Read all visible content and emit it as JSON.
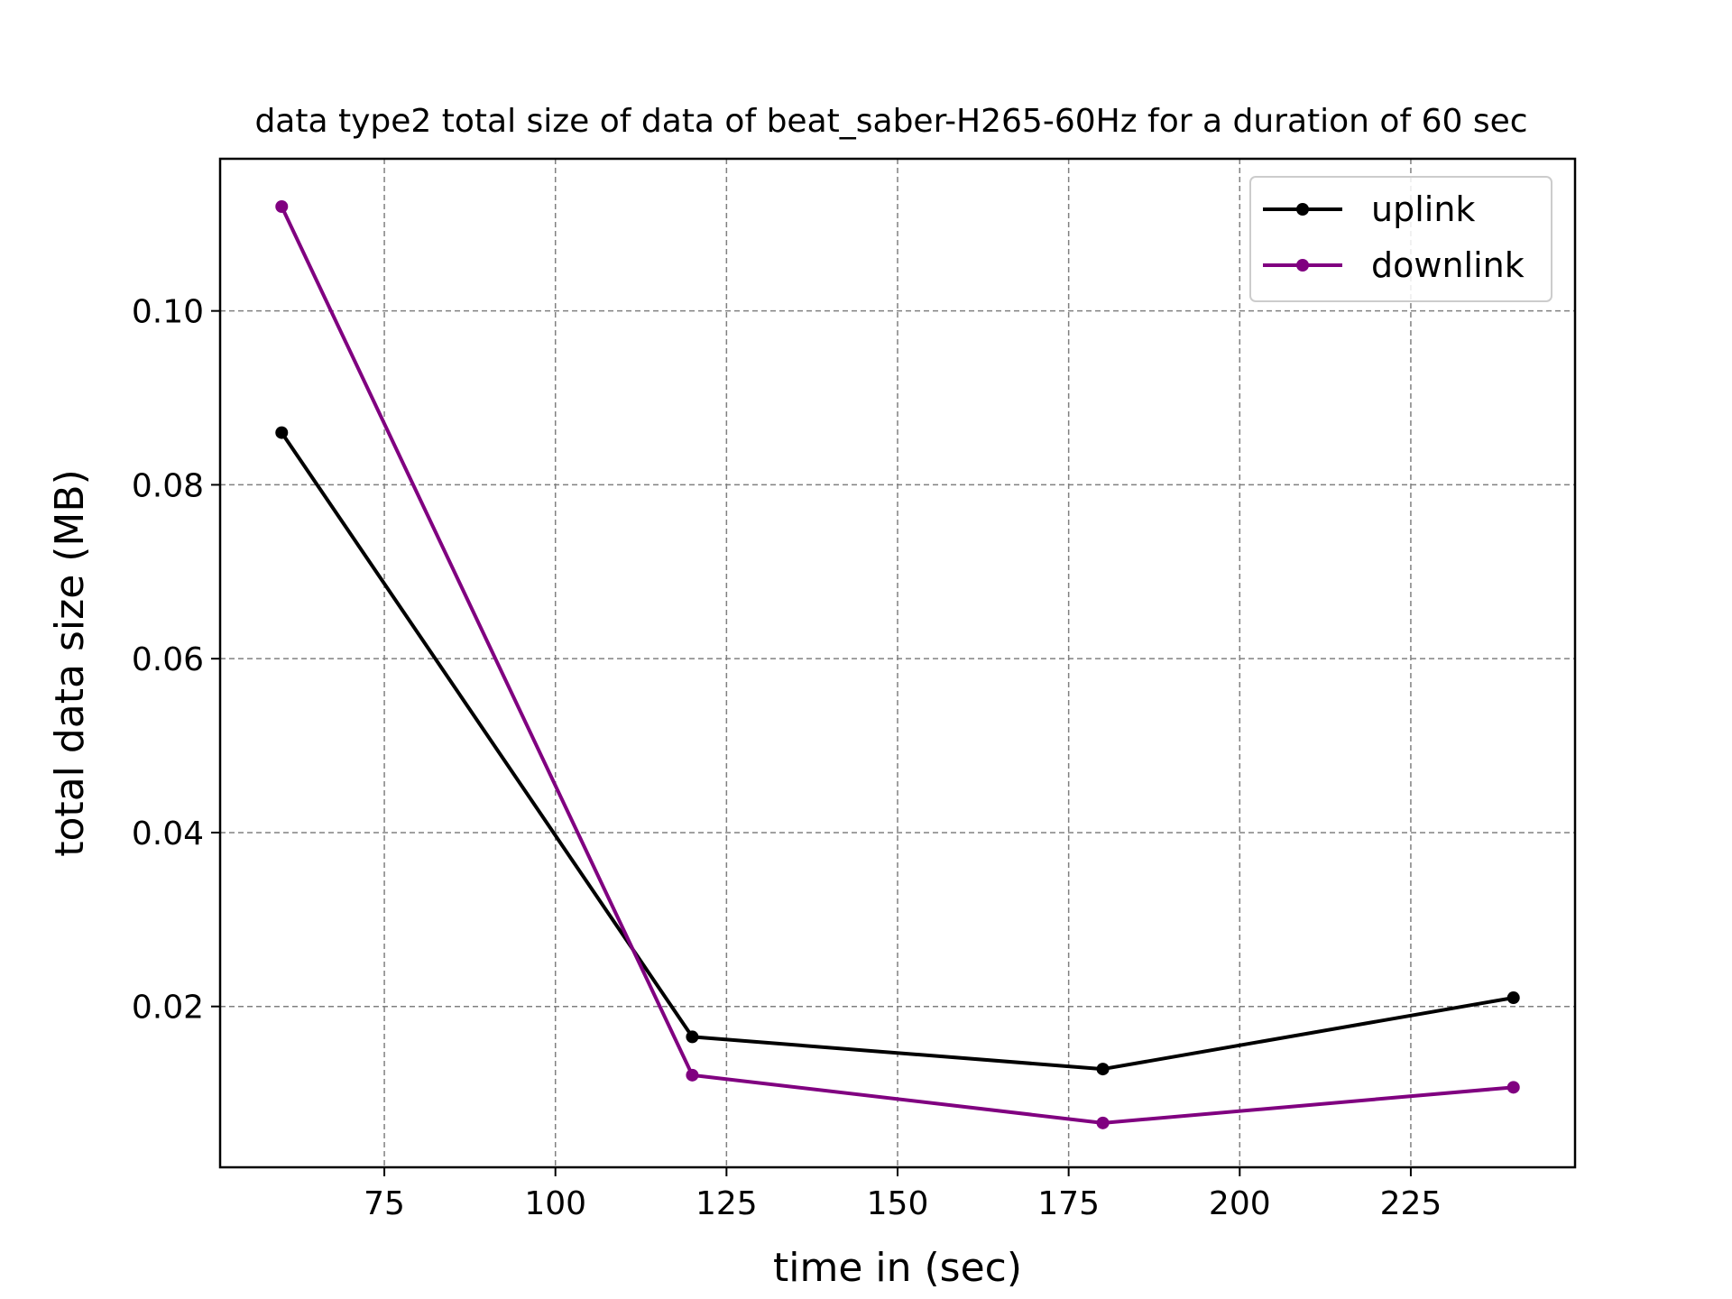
{
  "chart_data": {
    "type": "line",
    "title": "data type2 total size of data of beat_saber-H265-60Hz for a duration of 60 sec",
    "xlabel": "time in (sec)",
    "ylabel": "total data size (MB)",
    "xlim": [
      51,
      249
    ],
    "ylim": [
      0.0015,
      0.1175
    ],
    "xticks": [
      75,
      100,
      125,
      150,
      175,
      200,
      225
    ],
    "yticks": [
      0.02,
      0.04,
      0.06,
      0.08,
      0.1
    ],
    "ytick_labels": [
      "0.02",
      "0.04",
      "0.06",
      "0.08",
      "0.10"
    ],
    "grid": true,
    "legend_position": "top-right",
    "series": [
      {
        "name": "uplink",
        "color": "#000000",
        "x": [
          60,
          120,
          180,
          240
        ],
        "y": [
          0.086,
          0.0165,
          0.0128,
          0.021
        ]
      },
      {
        "name": "downlink",
        "color": "#800080",
        "x": [
          60,
          120,
          180,
          240
        ],
        "y": [
          0.112,
          0.0121,
          0.0066,
          0.0107
        ]
      }
    ]
  }
}
